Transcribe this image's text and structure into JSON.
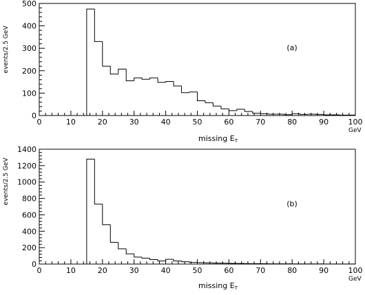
{
  "chart_data": [
    {
      "type": "bar",
      "panel_label": "(a)",
      "ylabel": "events/2.5 GeV",
      "xlabel": "missing E",
      "xlabel_sub": "T",
      "x_unit": "GeV",
      "xlim": [
        0,
        100
      ],
      "ylim": [
        0,
        500
      ],
      "x_ticks": [
        0,
        10,
        20,
        30,
        40,
        50,
        60,
        70,
        80,
        90,
        100
      ],
      "y_ticks": [
        0,
        100,
        200,
        300,
        400,
        500
      ],
      "bin_width": 2.5,
      "bin_edges_start": 15,
      "values": [
        475,
        330,
        220,
        185,
        207,
        155,
        168,
        162,
        168,
        148,
        152,
        132,
        102,
        105,
        66,
        57,
        42,
        30,
        22,
        28,
        18,
        10,
        8,
        6,
        6,
        4,
        8,
        5,
        6,
        5,
        3,
        3,
        2,
        2
      ]
    },
    {
      "type": "bar",
      "panel_label": "(b)",
      "ylabel": "events/2.5 GeV",
      "xlabel": "missing E",
      "xlabel_sub": "T",
      "x_unit": "GeV",
      "xlim": [
        0,
        100
      ],
      "ylim": [
        0,
        1400
      ],
      "x_ticks": [
        0,
        10,
        20,
        30,
        40,
        50,
        60,
        70,
        80,
        90,
        100
      ],
      "y_ticks": [
        0,
        200,
        400,
        600,
        800,
        1000,
        1200,
        1400
      ],
      "bin_width": 2.5,
      "bin_edges_start": 15,
      "values": [
        1280,
        730,
        480,
        265,
        185,
        125,
        85,
        72,
        55,
        38,
        58,
        38,
        28,
        20,
        18,
        15,
        12,
        10,
        8,
        7,
        5,
        5,
        4,
        3,
        3,
        3,
        2,
        2,
        2,
        2,
        1,
        1,
        1,
        1
      ]
    }
  ]
}
